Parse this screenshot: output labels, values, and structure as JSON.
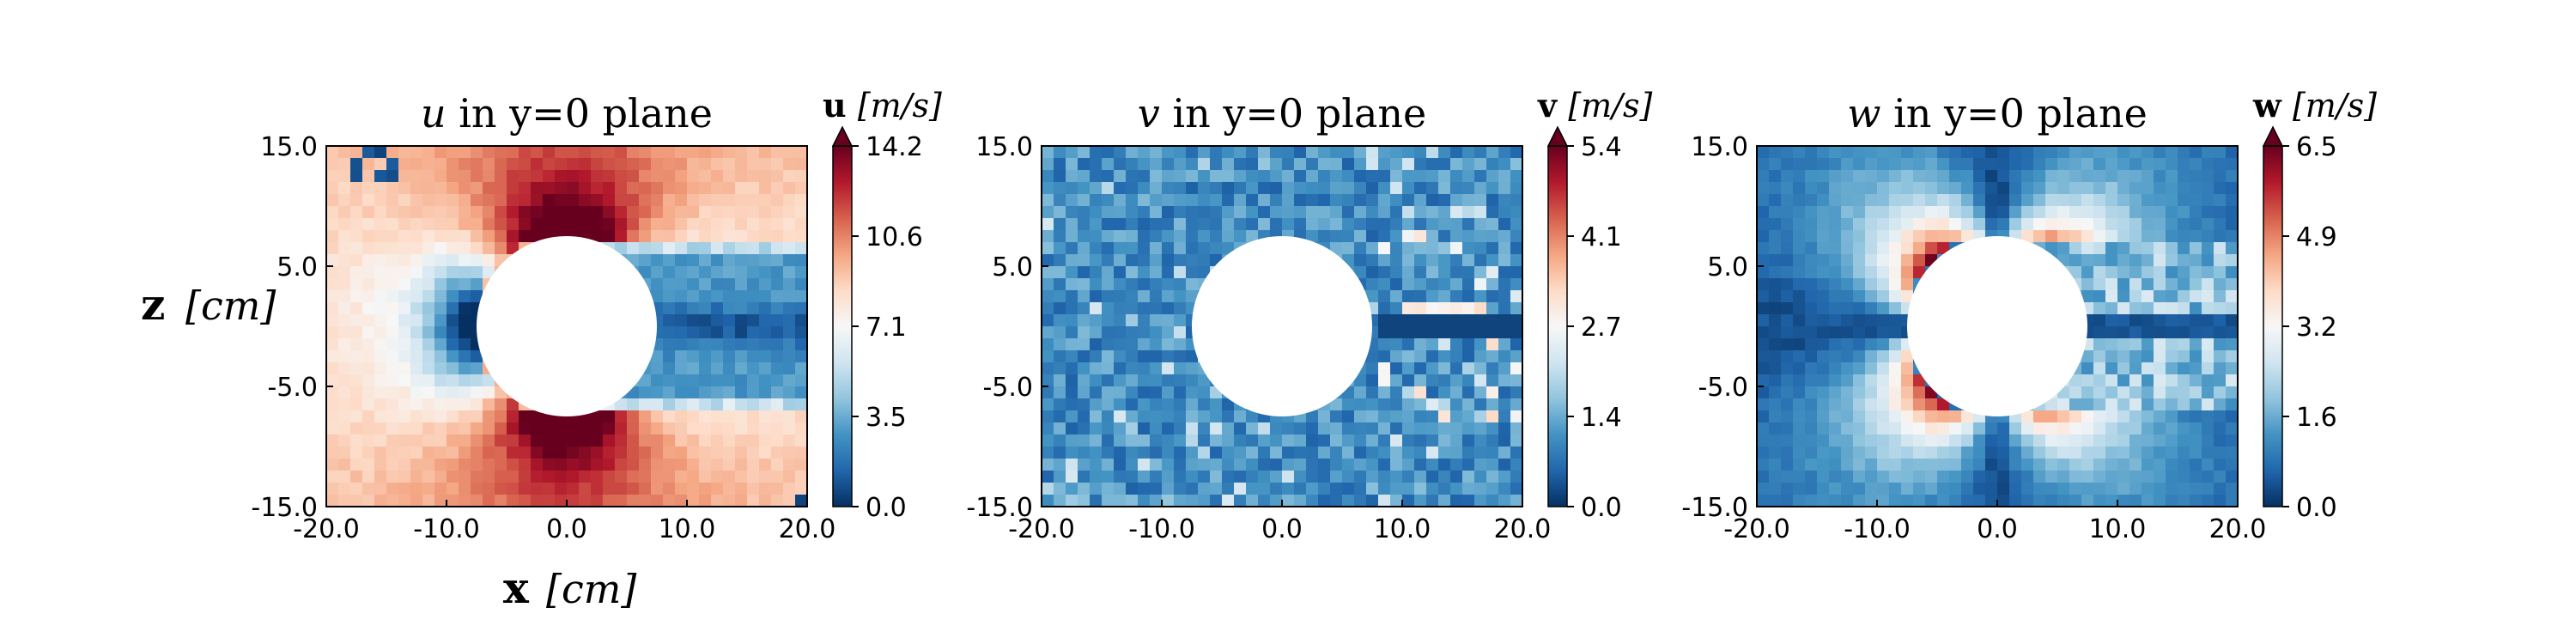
{
  "figure": {
    "ylabel_bold": "z",
    "ylabel_unit": "[cm]",
    "xlabel_bold": "x",
    "xlabel_unit": "[cm]"
  },
  "chart_data": [
    {
      "type": "heatmap",
      "field": "u",
      "title_symbol": "u",
      "title_text": "in y=0 plane",
      "colorbar_symbol": "u",
      "colorbar_unit": "[m/s]",
      "colormap": "RdBu_r",
      "x_range": [
        -20,
        20
      ],
      "z_range": [
        -15,
        15
      ],
      "x_ticks": [
        "-20.0",
        "-10.0",
        "0.0",
        "10.0",
        "20.0"
      ],
      "z_ticks": [
        "15.0",
        "5.0",
        "-5.0",
        "-15.0"
      ],
      "colorbar_range": [
        0.0,
        14.2
      ],
      "colorbar_ticks": [
        "14.2",
        "10.6",
        "7.1",
        "3.5",
        "0.0"
      ],
      "obstacle": {
        "shape": "circle",
        "center_x": 0,
        "center_z": 0,
        "radius": 7.5,
        "color": "#ffffff"
      },
      "pattern": "freestream ~9.5 m/s; stagnation (low) upstream of cylinder; acceleration peaks (~13-14 m/s) above/below; low-speed recirculating wake downstream; dark patches at top-left corner"
    },
    {
      "type": "heatmap",
      "field": "v",
      "title_symbol": "v",
      "title_text": "in y=0 plane",
      "colorbar_symbol": "v",
      "colorbar_unit": "[m/s]",
      "colormap": "RdBu_r",
      "x_range": [
        -20,
        20
      ],
      "z_range": [
        -15,
        15
      ],
      "x_ticks": [
        "-20.0",
        "-10.0",
        "0.0",
        "10.0",
        "20.0"
      ],
      "z_ticks": [
        "15.0",
        "5.0",
        "-5.0",
        "-15.0"
      ],
      "colorbar_range": [
        0.0,
        5.4
      ],
      "colorbar_ticks": [
        "5.4",
        "4.1",
        "2.7",
        "1.4",
        "0.0"
      ],
      "obstacle": {
        "shape": "circle",
        "center_x": 0,
        "center_z": 0,
        "radius": 7.5,
        "color": "#ffffff"
      },
      "pattern": "mostly low noise 0-1.5 m/s; sparse bright cells in wake; a few high values near x=12, z=1"
    },
    {
      "type": "heatmap",
      "field": "w",
      "title_symbol": "w",
      "title_text": "in y=0 plane",
      "colorbar_symbol": "w",
      "colorbar_unit": "[m/s]",
      "colormap": "RdBu_r",
      "x_range": [
        -20,
        20
      ],
      "z_range": [
        -15,
        15
      ],
      "x_ticks": [
        "-20.0",
        "-10.0",
        "0.0",
        "10.0",
        "20.0"
      ],
      "z_ticks": [
        "15.0",
        "5.0",
        "-5.0",
        "-15.0"
      ],
      "colorbar_range": [
        0.0,
        6.5
      ],
      "colorbar_ticks": [
        "6.5",
        "4.9",
        "3.2",
        "1.6",
        "0.0"
      ],
      "obstacle": {
        "shape": "circle",
        "center_x": 0,
        "center_z": 0,
        "radius": 7.5,
        "color": "#ffffff"
      },
      "pattern": "lobes of high |w| upstream above and below cylinder (peak ~6.5 m/s near x=-5, z=+/-5); low along centerline wake; noisy elevated values downstream"
    }
  ]
}
